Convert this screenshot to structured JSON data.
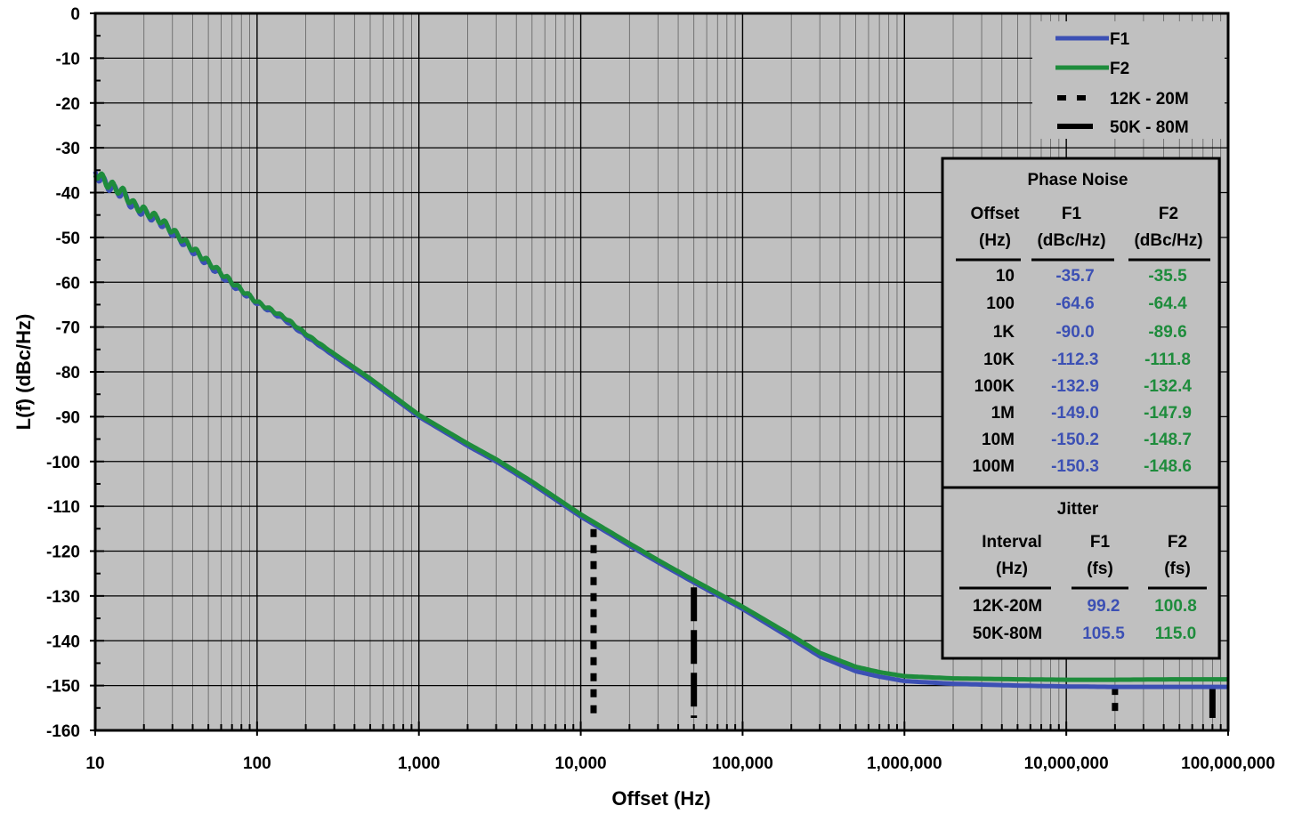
{
  "chart_data": {
    "type": "line",
    "xlabel": "Offset (Hz)",
    "ylabel": "L(f) (dBc/Hz)",
    "xscale": "log",
    "xlim": [
      10,
      100000000
    ],
    "ylim": [
      -160,
      0
    ],
    "grid": true,
    "x_tick_labels": [
      "10",
      "100",
      "1,000",
      "10,000",
      "100,000",
      "1,000,000",
      "10,000,000",
      "100,000,000"
    ],
    "y_tick_labels": [
      "0",
      "-10",
      "-20",
      "-30",
      "-40",
      "-50",
      "-60",
      "-70",
      "-80",
      "-90",
      "-100",
      "-110",
      "-120",
      "-130",
      "-140",
      "-150",
      "-160"
    ],
    "series": [
      {
        "name": "F1",
        "color": "#3c50b4",
        "x": [
          10,
          12,
          15,
          17,
          20,
          25,
          30,
          40,
          50,
          70,
          100,
          150,
          200,
          300,
          500,
          1000,
          2000,
          3000,
          5000,
          10000,
          20000,
          30000,
          50000,
          100000,
          200000,
          300000,
          500000,
          700000,
          1000000,
          2000000,
          5000000,
          10000000,
          20000000,
          50000000,
          100000000
        ],
        "y": [
          -35.7,
          -38.5,
          -40.5,
          -43.0,
          -44.5,
          -46.5,
          -49.0,
          -53.0,
          -56.0,
          -60.5,
          -64.6,
          -68.5,
          -72.0,
          -76.5,
          -82.0,
          -90.0,
          -96.5,
          -100.0,
          -105.0,
          -112.3,
          -118.8,
          -122.5,
          -127.0,
          -132.9,
          -139.5,
          -143.5,
          -146.8,
          -148.0,
          -149.0,
          -149.6,
          -150.0,
          -150.2,
          -150.3,
          -150.3,
          -150.3
        ]
      },
      {
        "name": "F2",
        "color": "#1e8c3c",
        "x": [
          10,
          12,
          15,
          17,
          20,
          25,
          30,
          40,
          50,
          70,
          100,
          150,
          200,
          300,
          500,
          1000,
          2000,
          3000,
          5000,
          10000,
          20000,
          30000,
          50000,
          100000,
          200000,
          300000,
          500000,
          700000,
          1000000,
          2000000,
          5000000,
          10000000,
          20000000,
          50000000,
          100000000
        ],
        "y": [
          -35.5,
          -38.0,
          -40.0,
          -42.5,
          -44.0,
          -46.0,
          -48.5,
          -52.5,
          -55.5,
          -60.0,
          -64.4,
          -68.0,
          -71.5,
          -76.0,
          -81.5,
          -89.6,
          -96.0,
          -99.5,
          -104.5,
          -111.8,
          -118.3,
          -122.0,
          -126.5,
          -132.4,
          -138.8,
          -142.7,
          -145.8,
          -147.0,
          -147.9,
          -148.4,
          -148.6,
          -148.7,
          -148.7,
          -148.6,
          -148.6
        ]
      }
    ],
    "markers": [
      {
        "name": "12K - 20M",
        "style": "dotted",
        "x": [
          12000,
          20000000
        ]
      },
      {
        "name": "50K - 80M",
        "style": "dashed",
        "x": [
          50000,
          80000000
        ]
      }
    ],
    "legend": {
      "position": "top-right",
      "items": [
        "F1",
        "F2",
        "12K - 20M",
        "50K - 80M"
      ]
    },
    "phase_noise_table": {
      "title": "Phase Noise",
      "headers": [
        [
          "Offset",
          "(Hz)"
        ],
        [
          "F1",
          "(dBc/Hz)"
        ],
        [
          "F2",
          "(dBc/Hz)"
        ]
      ],
      "rows": [
        [
          "10",
          "-35.7",
          "-35.5"
        ],
        [
          "100",
          "-64.6",
          "-64.4"
        ],
        [
          "1K",
          "-90.0",
          "-89.6"
        ],
        [
          "10K",
          "-112.3",
          "-111.8"
        ],
        [
          "100K",
          "-132.9",
          "-132.4"
        ],
        [
          "1M",
          "-149.0",
          "-147.9"
        ],
        [
          "10M",
          "-150.2",
          "-148.7"
        ],
        [
          "100M",
          "-150.3",
          "-148.6"
        ]
      ]
    },
    "jitter_table": {
      "title": "Jitter",
      "headers": [
        [
          "Interval",
          "(Hz)"
        ],
        [
          "F1",
          "(fs)"
        ],
        [
          "F2",
          "(fs)"
        ]
      ],
      "rows": [
        [
          "12K-20M",
          "99.2",
          "100.8"
        ],
        [
          "50K-80M",
          "105.5",
          "115.0"
        ]
      ]
    }
  }
}
